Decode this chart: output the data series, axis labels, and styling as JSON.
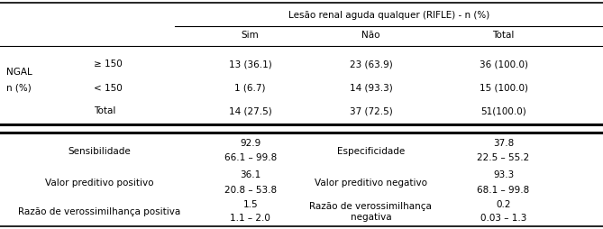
{
  "figsize": [
    6.69,
    2.54
  ],
  "dpi": 100,
  "bg_color": "#ffffff",
  "header_group": "Lesão renal aguda qualquer (RIFLE) - n (%)",
  "col_headers": [
    "Sim",
    "Não",
    "Total"
  ],
  "row_label_left1": "NGAL",
  "row_label_left2": "n (%)",
  "row_labels": [
    "≥ 150",
    "< 150",
    "Total"
  ],
  "table_data": [
    [
      "13 (36.1)",
      "23 (63.9)",
      "36 (100.0)"
    ],
    [
      "1 (6.7)",
      "14 (93.3)",
      "15 (100.0)"
    ],
    [
      "14 (27.5)",
      "37 (72.5)",
      "51(100.0)"
    ]
  ],
  "stats_rows": [
    {
      "left_label": "Sensibilidade",
      "left_val1": "92.9",
      "left_val2": "66.1 – 99.8",
      "mid_label": "Especificidade",
      "right_val1": "37.8",
      "right_val2": "22.5 – 55.2"
    },
    {
      "left_label": "Valor preditivo positivo",
      "left_val1": "36.1",
      "left_val2": "20.8 – 53.8",
      "mid_label": "Valor preditivo negativo",
      "right_val1": "93.3",
      "right_val2": "68.1 – 99.8"
    },
    {
      "left_label": "Razão de verossimilhança positiva",
      "left_val1": "1.5",
      "left_val2": "1.1 – 2.0",
      "mid_label": "Razão de verossimilhança\nnegativa",
      "right_val1": "0.2",
      "right_val2": "0.03 – 1.3"
    }
  ],
  "font_size": 7.5,
  "font_family": "DejaVu Sans"
}
